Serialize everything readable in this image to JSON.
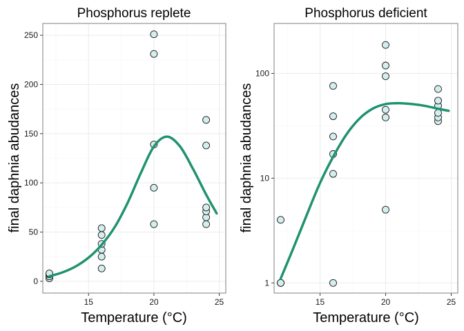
{
  "style": {
    "point_fill": "#d4eeee",
    "curve_color": "#1f9270"
  },
  "chart_data": [
    {
      "type": "scatter",
      "title": "Phosphorus replete",
      "xlabel": "Temperature (°C)",
      "ylabel": "final daphnia abudances",
      "yscale": "linear",
      "xlim": [
        11.5,
        25.5
      ],
      "ylim": [
        -12,
        262
      ],
      "xticks": [
        15,
        20,
        25
      ],
      "yticks": [
        0,
        50,
        100,
        150,
        200,
        250
      ],
      "grid": true,
      "points": {
        "x": [
          12,
          12,
          12,
          12,
          16,
          16,
          16,
          16,
          16,
          16,
          20,
          20,
          20,
          20,
          20,
          24,
          24,
          24,
          24,
          24,
          24
        ],
        "y": [
          3,
          5,
          7,
          8,
          13,
          25,
          32,
          38,
          47,
          54,
          58,
          95,
          139,
          231,
          251,
          58,
          65,
          71,
          75,
          138,
          164
        ]
      },
      "fit_curve": {
        "x": [
          12,
          13,
          14,
          15,
          16,
          17,
          18,
          19,
          20,
          21,
          22,
          23,
          24,
          24.8
        ],
        "y": [
          5,
          9,
          15,
          24,
          37,
          55,
          80,
          110,
          137,
          147,
          137,
          114,
          88,
          69
        ]
      }
    },
    {
      "type": "scatter",
      "title": "Phosphorus deficient",
      "xlabel": "Temperature (°C)",
      "ylabel": "final daphnia abudances",
      "yscale": "log10",
      "xlim": [
        11.5,
        25.5
      ],
      "ylim": [
        0.8,
        300
      ],
      "xticks": [
        15,
        20,
        25
      ],
      "yticks": [
        1,
        10,
        100
      ],
      "grid": true,
      "points": {
        "x": [
          12,
          12,
          12,
          12,
          16,
          16,
          16,
          16,
          16,
          16,
          20,
          20,
          20,
          20,
          20,
          20,
          24,
          24,
          24,
          24,
          24,
          24
        ],
        "y": [
          1,
          1,
          1,
          4,
          1,
          11,
          17,
          25,
          39,
          76,
          5,
          38,
          45,
          94,
          119,
          187,
          35,
          38,
          42,
          49,
          55,
          71
        ]
      },
      "fit_curve": {
        "x": [
          12,
          13,
          14,
          15,
          16,
          17,
          18,
          19,
          20,
          21,
          22,
          23,
          24,
          24.8
        ],
        "y": [
          1.1,
          2.2,
          4.5,
          9,
          16,
          26,
          37,
          46,
          51,
          52,
          51,
          49,
          46,
          44
        ]
      }
    }
  ]
}
